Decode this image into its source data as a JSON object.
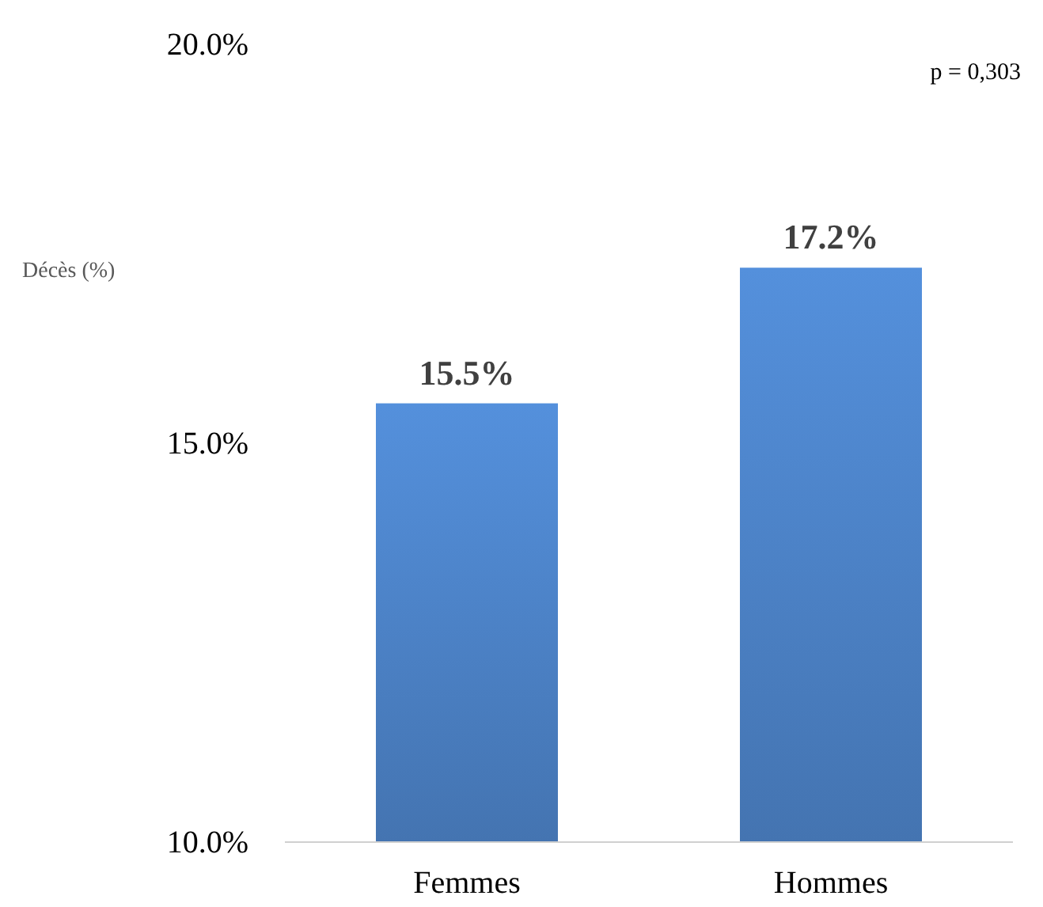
{
  "chart_data": {
    "type": "bar",
    "categories": [
      "Femmes",
      "Hommes"
    ],
    "values": [
      15.5,
      17.2
    ],
    "color": "#4a7fc2",
    "value_labels": [
      "15.5%",
      "17.2%"
    ],
    "ylabel": "Décès (%)",
    "annotations": [
      "p = 0,303"
    ],
    "ylim": [
      10,
      20
    ],
    "yticks": [
      {
        "value": 10,
        "label": "10.0%"
      },
      {
        "value": 15,
        "label": "15.0%"
      },
      {
        "value": 20,
        "label": "20.0%"
      }
    ],
    "grid": false
  }
}
